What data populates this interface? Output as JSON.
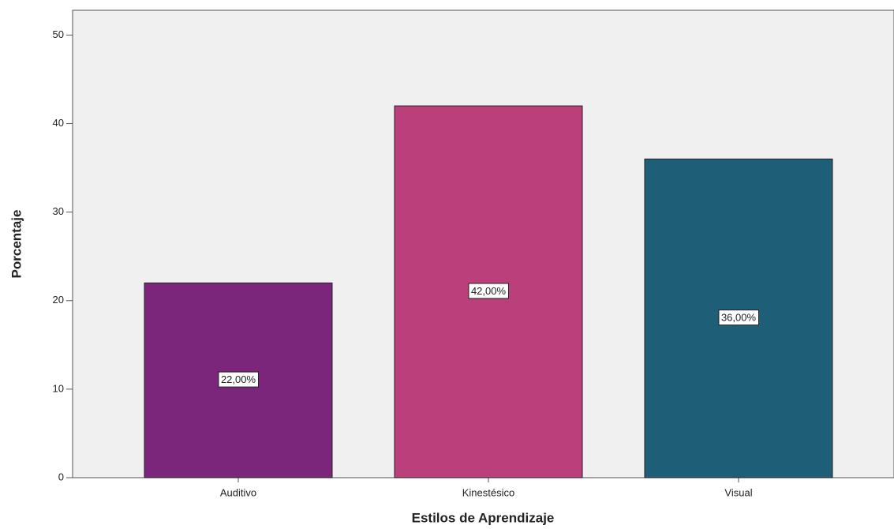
{
  "chart_data": {
    "type": "bar",
    "categories": [
      "Auditivo",
      "Kinestésico",
      "Visual"
    ],
    "values": [
      22,
      42,
      36
    ],
    "value_labels": [
      "22,00%",
      "42,00%",
      "36,00%"
    ],
    "colors": [
      "#7b267a",
      "#bb3f7b",
      "#1e5f77"
    ],
    "xlabel": "Estilos de Aprendizaje",
    "ylabel": "Porcentaje",
    "ylim": [
      0,
      52.8
    ],
    "yticks": [
      0,
      10,
      20,
      30,
      40,
      50
    ],
    "grid": false
  }
}
